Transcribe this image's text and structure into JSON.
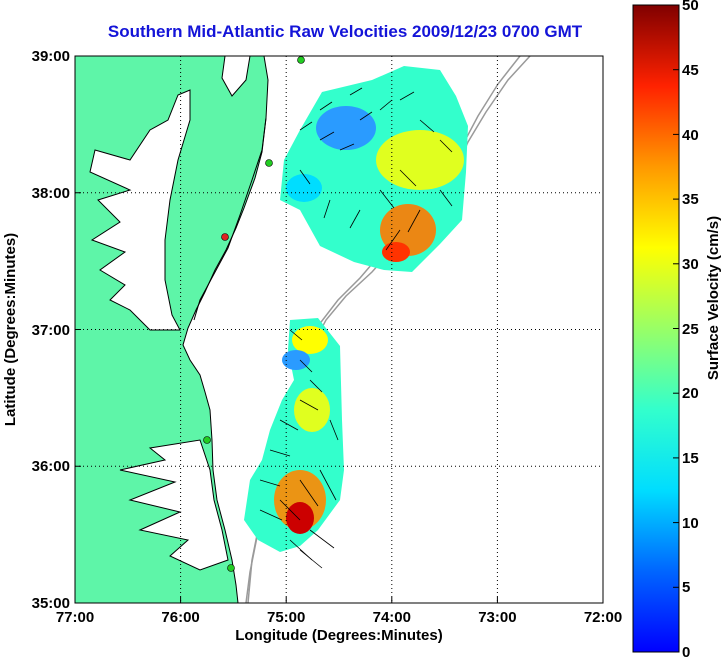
{
  "title": "Southern Mid-Atlantic Raw Velocities 2009/12/23 0700 GMT",
  "map": {
    "xlabel": "Longitude (Degrees:Minutes)",
    "ylabel": "Latitude (Degrees:Minutes)",
    "xticks": [
      "77:00",
      "76:00",
      "75:00",
      "74:00",
      "73:00",
      "72:00"
    ],
    "yticks": [
      "39:00",
      "38:00",
      "37:00",
      "36:00",
      "35:00"
    ],
    "lon_range": [
      -77,
      -72
    ],
    "lat_range": [
      35,
      39
    ],
    "grid": "dotted",
    "land_color": "#5ef5a8",
    "bathymetry_color": "#9a9a9a",
    "vector_color": "#000000",
    "station_colors": [
      "#22cc22",
      "#dd2222"
    ]
  },
  "colorbar": {
    "label": "Surface Velocity (cm/s)",
    "ticks": [
      "50",
      "45",
      "40",
      "35",
      "30",
      "25",
      "20",
      "15",
      "10",
      "5",
      "0"
    ],
    "range": [
      0,
      50
    ],
    "colormap": "jet"
  }
}
